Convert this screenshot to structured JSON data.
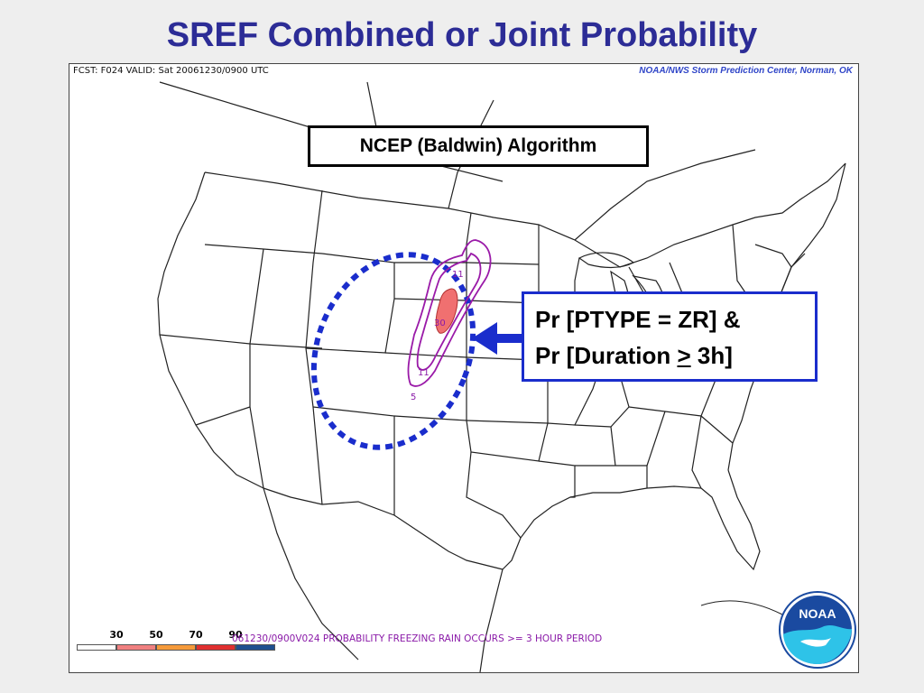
{
  "slide": {
    "title": "SREF Combined or Joint Probability"
  },
  "map": {
    "header_left": "FCST: F024  VALID: Sat  20061230/0900 UTC",
    "header_right": "NOAA/NWS Storm Prediction Center, Norman, OK",
    "algorithm_label": "NCEP (Baldwin) Algorithm",
    "annotation": {
      "line1": "Pr [PTYPE = ZR] &",
      "line2_prefix": "Pr [Duration ",
      "line2_symbol": ">",
      "line2_suffix": " 3h]"
    },
    "contour_labels": [
      "11",
      "30",
      "11",
      "5"
    ],
    "legend": {
      "ticks": [
        "30",
        "50",
        "70",
        "90"
      ],
      "colors": [
        "#ffffff",
        "#f08080",
        "#f59a3a",
        "#e03030",
        "#1f4f8f"
      ]
    },
    "product_label": "061230/0900V024 PROBABILITY FREEZING RAIN OCCURS >= 3 HOUR PERIOD",
    "logo_text": "NOAA",
    "colors": {
      "contour": "#9a1aa8",
      "fill": "#f07070",
      "highlight_ellipse": "#1a2dcc",
      "arrow": "#1a2dcc"
    }
  }
}
